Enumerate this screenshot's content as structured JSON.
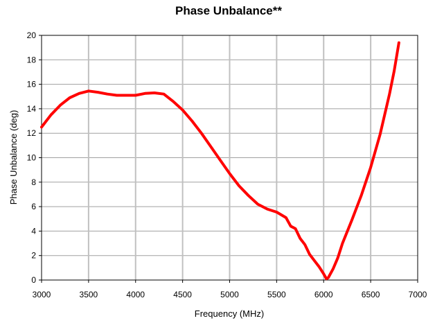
{
  "chart_data": {
    "type": "line",
    "title": "Phase Unbalance**",
    "xlabel": "Frequency (MHz)",
    "ylabel": "Phase Unbalance (deg)",
    "xlim": [
      3000,
      7000
    ],
    "ylim": [
      0,
      20
    ],
    "xticks": [
      3000,
      3500,
      4000,
      4500,
      5000,
      5500,
      6000,
      6500,
      7000
    ],
    "yticks": [
      0,
      2,
      4,
      6,
      8,
      10,
      12,
      14,
      16,
      18,
      20
    ],
    "grid": {
      "vertical": true,
      "horizontal": true
    },
    "legend": "none",
    "colors": {
      "series": "#ff0000",
      "vertical_grid": "#c0c0c0",
      "horizontal_grid": "#a0a0a0",
      "axis": "#000000"
    },
    "series": [
      {
        "x": [
          3000,
          3100,
          3200,
          3300,
          3400,
          3500,
          3600,
          3700,
          3800,
          3900,
          4000,
          4100,
          4200,
          4300,
          4400,
          4500,
          4600,
          4700,
          4800,
          4900,
          5000,
          5100,
          5200,
          5300,
          5400,
          5500,
          5600,
          5650,
          5700,
          5750,
          5800,
          5850,
          5900,
          5950,
          6000,
          6030,
          6050,
          6100,
          6150,
          6200,
          6300,
          6400,
          6500,
          6600,
          6700,
          6750,
          6800
        ],
        "y": [
          12.5,
          13.5,
          14.3,
          14.9,
          15.25,
          15.45,
          15.35,
          15.2,
          15.1,
          15.1,
          15.1,
          15.25,
          15.3,
          15.2,
          14.6,
          13.9,
          13.0,
          12.0,
          10.9,
          9.8,
          8.7,
          7.7,
          6.9,
          6.2,
          5.8,
          5.55,
          5.1,
          4.4,
          4.2,
          3.4,
          2.9,
          2.1,
          1.6,
          1.1,
          0.5,
          0.1,
          0.2,
          0.9,
          1.8,
          3.0,
          4.9,
          6.9,
          9.2,
          11.9,
          15.2,
          17.1,
          19.4
        ]
      }
    ]
  }
}
